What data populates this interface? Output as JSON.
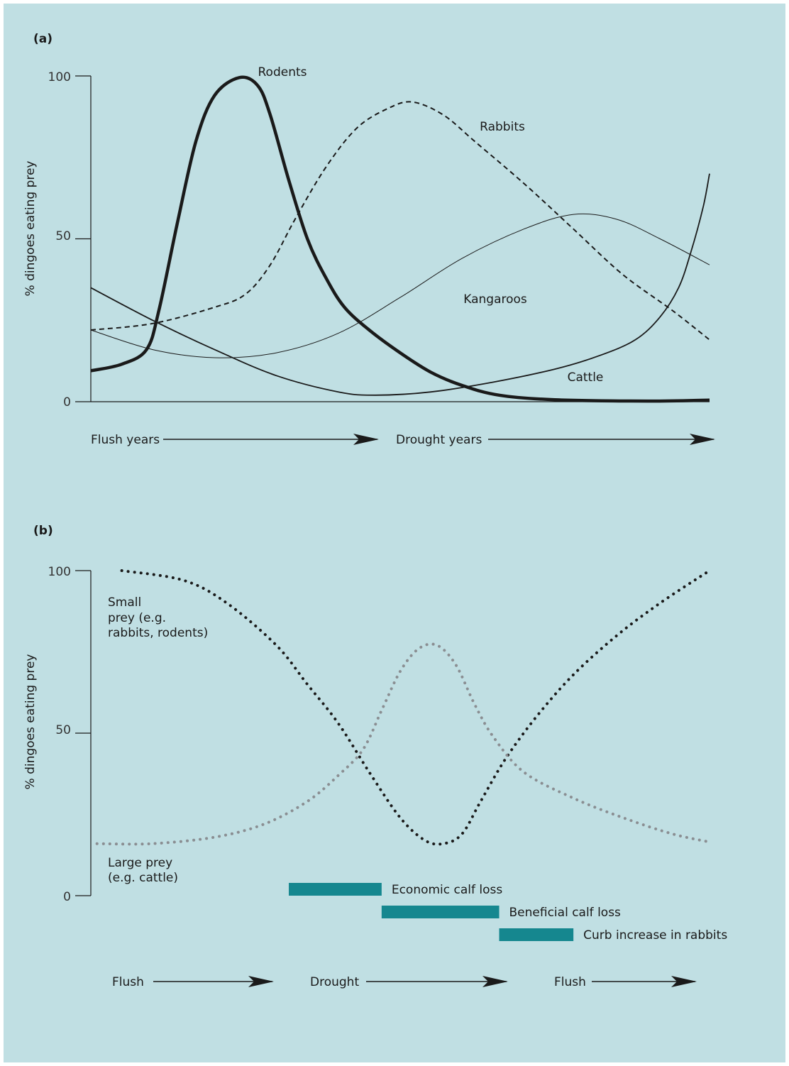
{
  "colors": {
    "background": "#c0dfe3",
    "line_dark": "#1a1a1a",
    "large_prey_dots": "#8a8e92",
    "bar_fill": "#15878f"
  },
  "chart_data": [
    {
      "panel_label": "(a)",
      "type": "line",
      "ylabel": "% dingoes eating prey",
      "ylim": [
        0,
        100
      ],
      "yticks": [
        "100",
        "50",
        "0"
      ],
      "x_range": [
        0,
        100
      ],
      "phases": [
        "Flush years",
        "Drought years"
      ],
      "series": [
        {
          "name": "Rodents",
          "style": "thick-solid",
          "points": [
            [
              0,
              9.5
            ],
            [
              5,
              11.5
            ],
            [
              9,
              16
            ],
            [
              11,
              28
            ],
            [
              14,
              55
            ],
            [
              17,
              80
            ],
            [
              20,
              94
            ],
            [
              24,
              99.5
            ],
            [
              27,
              97
            ],
            [
              29,
              88
            ],
            [
              32,
              68
            ],
            [
              35,
              50
            ],
            [
              38,
              38
            ],
            [
              41,
              29
            ],
            [
              45,
              22
            ],
            [
              50,
              15
            ],
            [
              55,
              9
            ],
            [
              60,
              5
            ],
            [
              66,
              2
            ],
            [
              75,
              0.6
            ],
            [
              90,
              0.2
            ],
            [
              100,
              0.5
            ]
          ]
        },
        {
          "name": "Rabbits",
          "style": "dashed",
          "points": [
            [
              0,
              22
            ],
            [
              10,
              24
            ],
            [
              20,
              29
            ],
            [
              25,
              33
            ],
            [
              29,
              42
            ],
            [
              33,
              56
            ],
            [
              38,
              72
            ],
            [
              43,
              84
            ],
            [
              48,
              90
            ],
            [
              52,
              92
            ],
            [
              57,
              88
            ],
            [
              62,
              80
            ],
            [
              70,
              67
            ],
            [
              78,
              53
            ],
            [
              86,
              39
            ],
            [
              94,
              28
            ],
            [
              100,
              19
            ]
          ]
        },
        {
          "name": "Kangaroos",
          "style": "thin-solid",
          "points": [
            [
              0,
              22
            ],
            [
              10,
              16
            ],
            [
              20,
              13.5
            ],
            [
              30,
              15
            ],
            [
              40,
              21
            ],
            [
              50,
              32
            ],
            [
              60,
              44
            ],
            [
              70,
              53
            ],
            [
              78,
              57.5
            ],
            [
              85,
              56
            ],
            [
              92,
              50
            ],
            [
              100,
              42
            ]
          ]
        },
        {
          "name": "Cattle",
          "style": "solid",
          "points": [
            [
              0,
              35
            ],
            [
              10,
              25
            ],
            [
              20,
              16
            ],
            [
              30,
              8
            ],
            [
              40,
              3
            ],
            [
              46,
              2
            ],
            [
              55,
              3
            ],
            [
              65,
              6
            ],
            [
              75,
              10
            ],
            [
              82,
              14
            ],
            [
              88,
              19
            ],
            [
              92,
              26
            ],
            [
              95,
              35
            ],
            [
              97,
              46
            ],
            [
              99,
              60
            ],
            [
              100,
              70
            ]
          ]
        }
      ]
    },
    {
      "panel_label": "(b)",
      "type": "line",
      "ylabel": "% dingoes eating prey",
      "ylim": [
        0,
        100
      ],
      "yticks": [
        "100",
        "50",
        "0"
      ],
      "x_range": [
        0,
        100
      ],
      "phases": [
        "Flush",
        "Drought",
        "Flush"
      ],
      "series": [
        {
          "name": "Small prey (e.g. rabbits, rodents)",
          "style": "dark-dotted",
          "label_lines": [
            "Small",
            "prey (e.g.",
            "rabbits, rodents)"
          ],
          "points": [
            [
              5,
              100
            ],
            [
              15,
              97
            ],
            [
              22,
              90
            ],
            [
              30,
              77
            ],
            [
              35,
              65
            ],
            [
              40,
              53
            ],
            [
              45,
              38
            ],
            [
              50,
              24
            ],
            [
              54,
              17
            ],
            [
              57,
              16
            ],
            [
              60,
              19
            ],
            [
              63,
              29
            ],
            [
              67,
              42
            ],
            [
              72,
              55
            ],
            [
              78,
              68
            ],
            [
              85,
              80
            ],
            [
              92,
              90
            ],
            [
              100,
              100
            ]
          ]
        },
        {
          "name": "Large prey (e.g. cattle)",
          "style": "grey-dotted",
          "label_lines": [
            "Large prey",
            "(e.g. cattle)"
          ],
          "points": [
            [
              1,
              16
            ],
            [
              10,
              16
            ],
            [
              20,
              18
            ],
            [
              28,
              22
            ],
            [
              35,
              29
            ],
            [
              40,
              37
            ],
            [
              44,
              45
            ],
            [
              47,
              57
            ],
            [
              50,
              69
            ],
            [
              53,
              76
            ],
            [
              56,
              77
            ],
            [
              59,
              71
            ],
            [
              62,
              59
            ],
            [
              65,
              49
            ],
            [
              70,
              38
            ],
            [
              78,
              30
            ],
            [
              86,
              24
            ],
            [
              94,
              19
            ],
            [
              100,
              16.5
            ]
          ]
        }
      ],
      "bars": [
        {
          "label": "Economic calf loss",
          "start": 32,
          "end": 47,
          "level": 1
        },
        {
          "label": "Beneficial calf loss",
          "start": 47,
          "end": 66,
          "level": 2
        },
        {
          "label": "Curb increase in rabbits",
          "start": 66,
          "end": 78,
          "level": 3
        }
      ]
    }
  ]
}
